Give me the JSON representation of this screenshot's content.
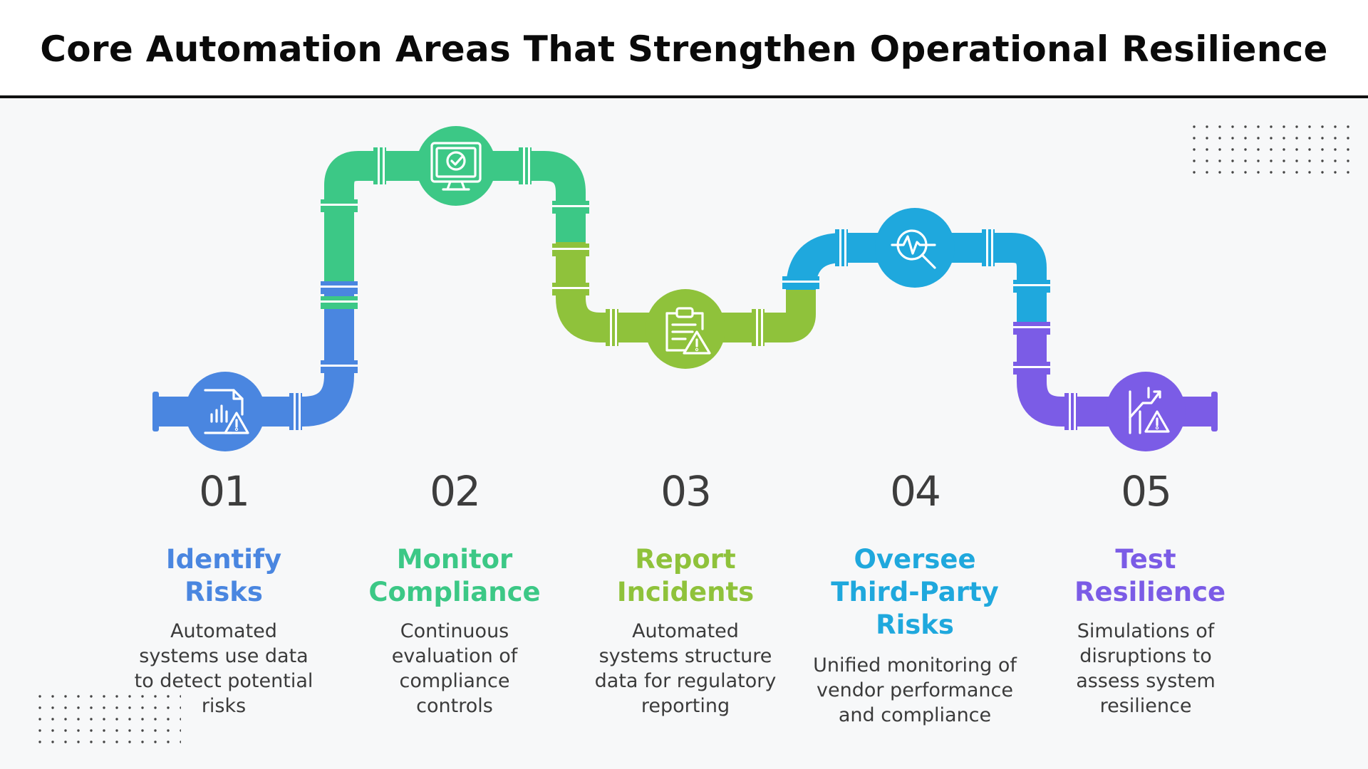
{
  "title": "Core Automation Areas That Strengthen Operational Resilience",
  "colors": {
    "blue": "#4a86e0",
    "green": "#3cc886",
    "lime": "#8fc23b",
    "cyan": "#1fa8dd",
    "purple": "#7b5ce6"
  },
  "steps": [
    {
      "number": "01",
      "title": "Identify Risks",
      "description": "Automated systems use data to detect potential risks",
      "icon": "document-chart-warning-icon",
      "color": "#4a86e0"
    },
    {
      "number": "02",
      "title": "Monitor Compliance",
      "description": "Continuous evaluation of compliance controls",
      "icon": "monitor-checkmark-icon",
      "color": "#3cc886"
    },
    {
      "number": "03",
      "title": "Report Incidents",
      "description": "Automated systems structure data for regulatory reporting",
      "icon": "clipboard-warning-icon",
      "color": "#8fc23b"
    },
    {
      "number": "04",
      "title": "Oversee Third-Party Risks",
      "description": "Unified monitoring of vendor performance and compliance",
      "icon": "magnifier-pulse-icon",
      "color": "#1fa8dd"
    },
    {
      "number": "05",
      "title": "Test Resilience",
      "description": "Simulations of disruptions to assess system resilience",
      "icon": "trend-chart-warning-icon",
      "color": "#7b5ce6"
    }
  ]
}
